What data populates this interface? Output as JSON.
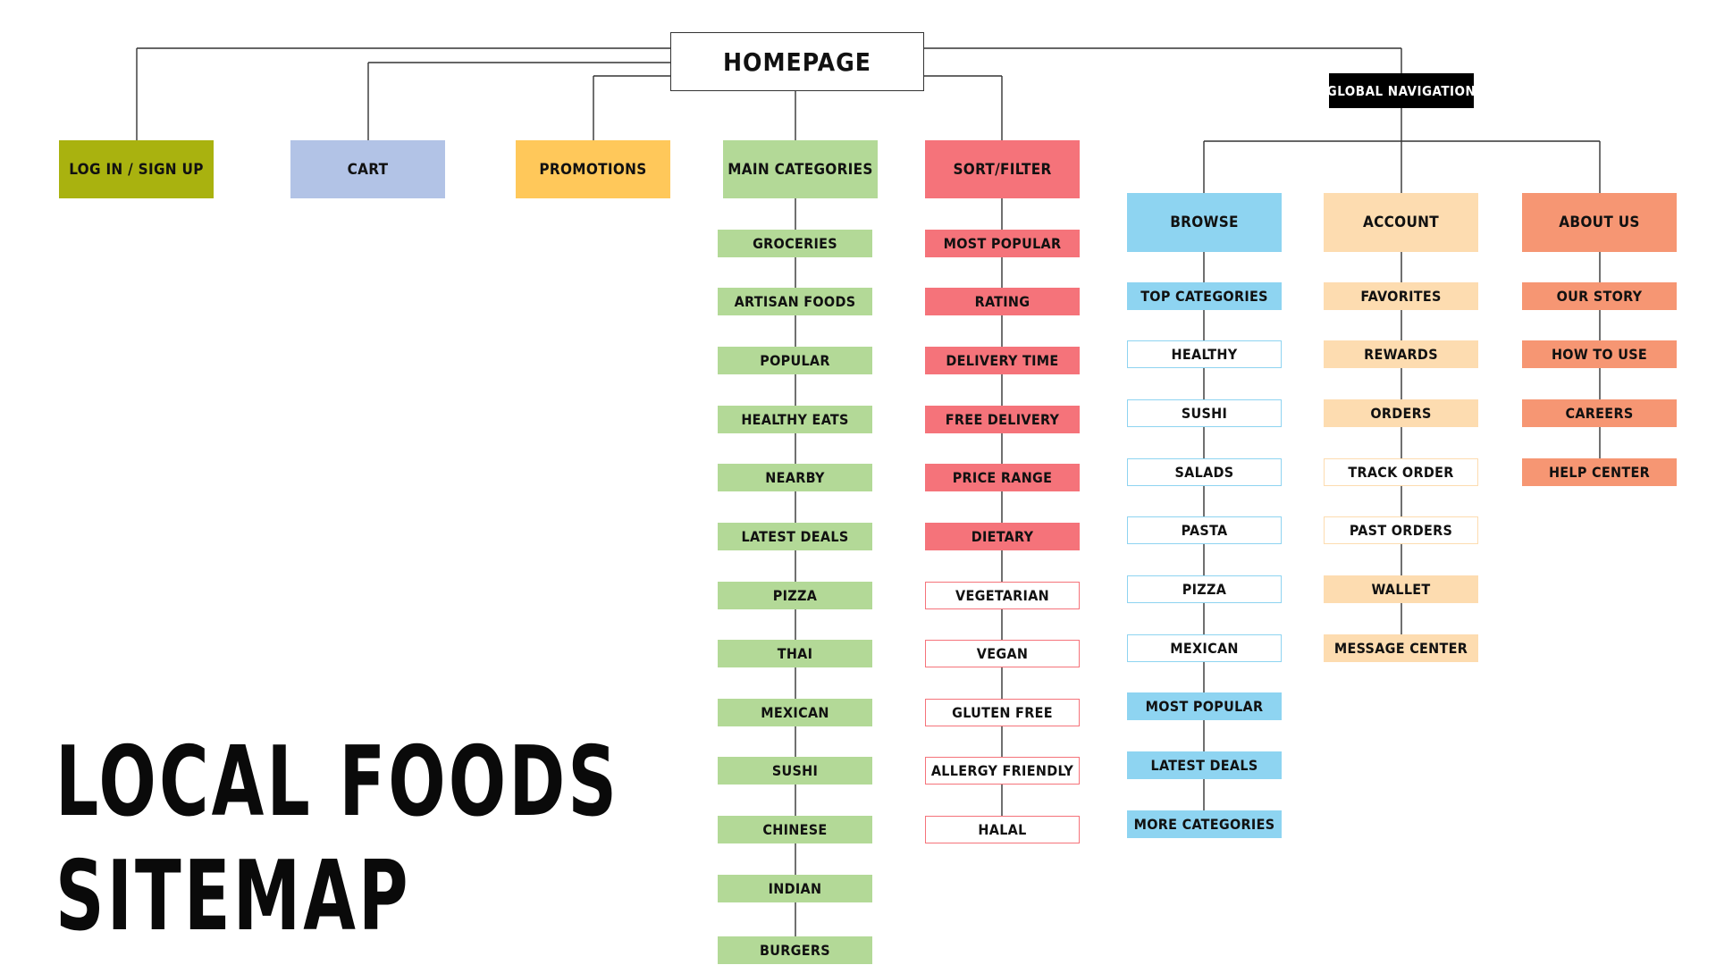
{
  "title_line1": "LOCAL FOODS",
  "title_line2": "SITEMAP",
  "colors": {
    "line": "#333333",
    "olive": "#a9b20f",
    "blue_gray": "#b2c3e6",
    "amber": "#ffc85a",
    "green": "#b3d997",
    "coral": "#f5737a",
    "sky": "#8ed4f1",
    "peach": "#fddcb0",
    "salmon": "#f69673",
    "black": "#000000",
    "white": "#ffffff"
  },
  "nodes": {
    "homepage": "HOMEPAGE",
    "global_nav": "GLOBAL NAVIGATION",
    "login": "LOG IN / SIGN UP",
    "cart": "CART",
    "promotions": "PROMOTIONS",
    "main_categories": "MAIN CATEGORIES",
    "sort_filter": "SORT/FILTER",
    "browse": "BROWSE",
    "account": "ACCOUNT",
    "about_us": "ABOUT US"
  },
  "main_categories": [
    "GROCERIES",
    "ARTISAN FOODS",
    "POPULAR",
    "HEALTHY EATS",
    "NEARBY",
    "LATEST DEALS",
    "PIZZA",
    "THAI",
    "MEXICAN",
    "SUSHI",
    "CHINESE",
    "INDIAN",
    "BURGERS"
  ],
  "sort_filter": {
    "filled": [
      "MOST POPULAR",
      "RATING",
      "DELIVERY TIME",
      "FREE DELIVERY",
      "PRICE RANGE",
      "DIETARY"
    ],
    "outlined": [
      "VEGETARIAN",
      "VEGAN",
      "GLUTEN FREE",
      "ALLERGY FRIENDLY",
      "HALAL"
    ]
  },
  "browse": {
    "filled_top": [
      "TOP CATEGORIES"
    ],
    "outlined": [
      "HEALTHY",
      "SUSHI",
      "SALADS",
      "PASTA",
      "PIZZA",
      "MEXICAN"
    ],
    "filled_bottom": [
      "MOST POPULAR",
      "LATEST DEALS",
      "MORE CATEGORIES"
    ]
  },
  "account": {
    "filled_top": [
      "FAVORITES",
      "REWARDS",
      "ORDERS"
    ],
    "outlined": [
      "TRACK ORDER",
      "PAST ORDERS"
    ],
    "filled_bottom": [
      "WALLET",
      "MESSAGE CENTER"
    ]
  },
  "about_us": [
    "OUR STORY",
    "HOW TO USE",
    "CAREERS",
    "HELP CENTER"
  ]
}
